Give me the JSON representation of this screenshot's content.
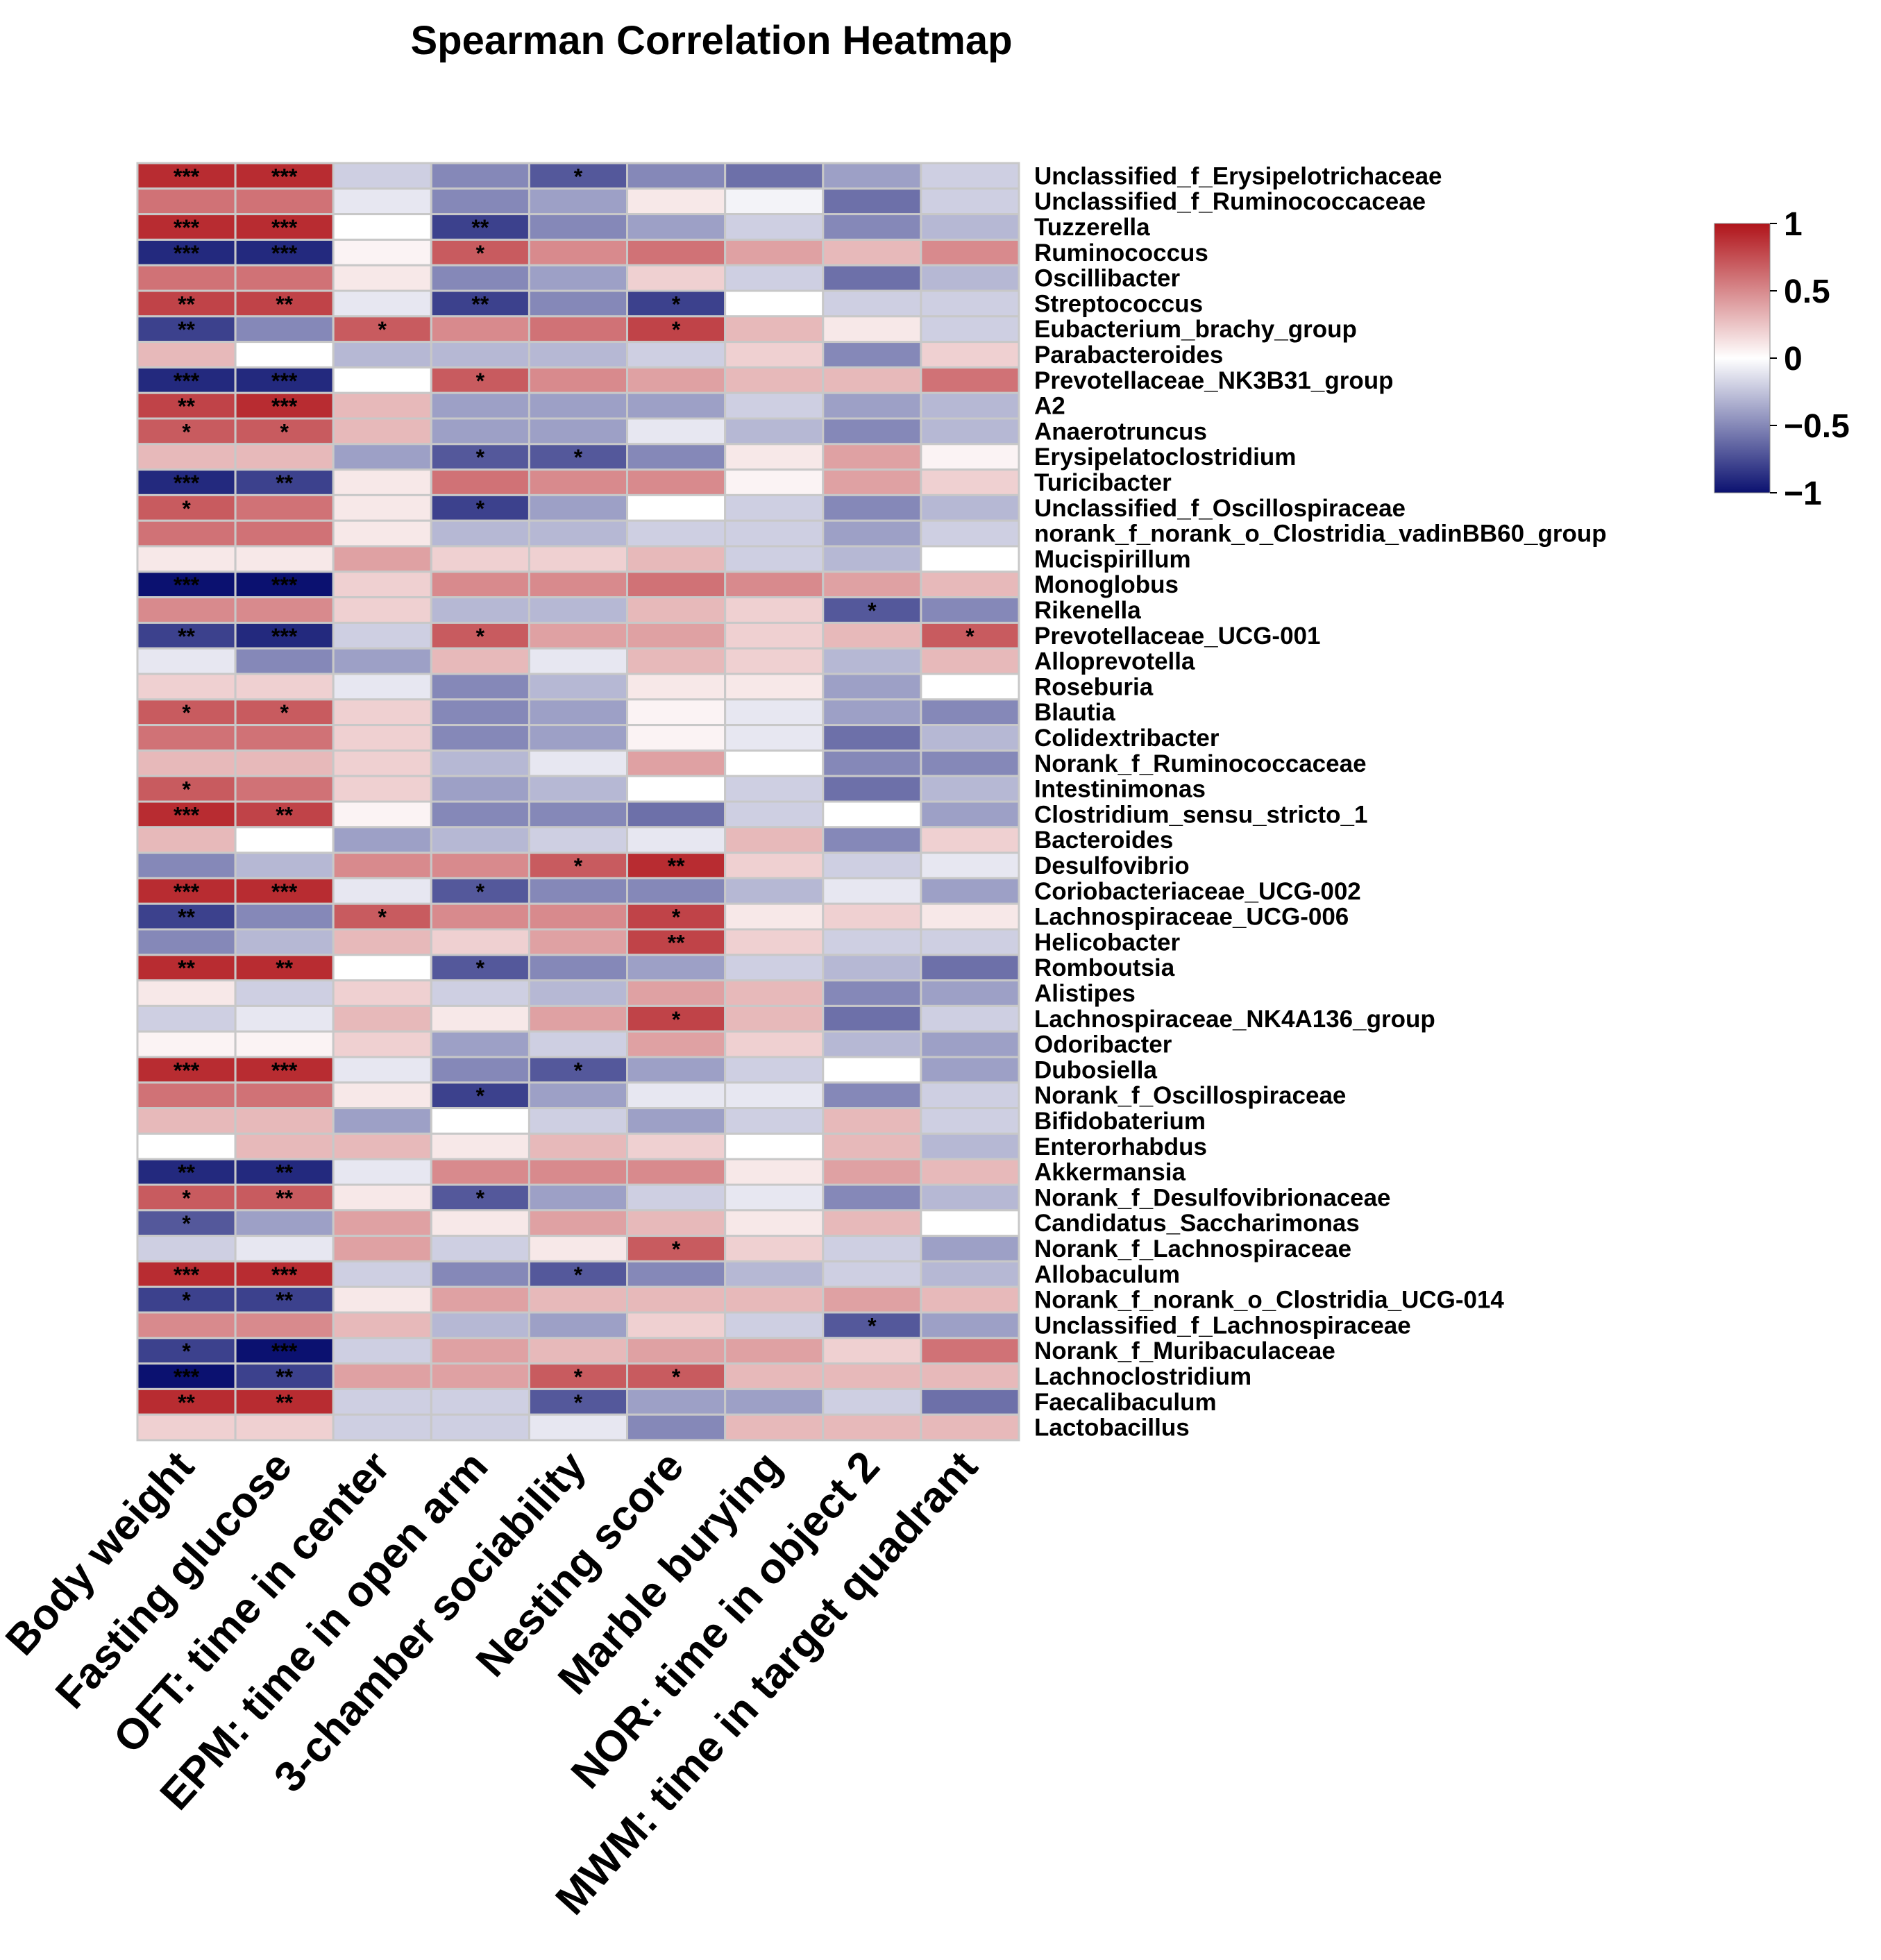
{
  "chart_data": {
    "type": "heatmap",
    "title": "Spearman Correlation Heatmap",
    "columns": [
      "Body weight",
      "Fasting glucose",
      "OFT: time in center",
      "EPM: time in open arm",
      "3-chamber sociability",
      "Nesting score",
      "Marble burying",
      "NOR: time in object 2",
      "MWM: time in target quadrant"
    ],
    "rows": [
      {
        "name": "Unclassified_f_Erysipelotrichaceae",
        "values": [
          0.9,
          0.9,
          -0.2,
          -0.5,
          -0.7,
          -0.5,
          -0.6,
          -0.4,
          -0.2
        ],
        "sig": [
          "***",
          "***",
          "",
          "",
          "*",
          "",
          "",
          "",
          ""
        ]
      },
      {
        "name": "Unclassified_f_Ruminococcaceae",
        "values": [
          0.6,
          0.6,
          -0.1,
          -0.5,
          -0.4,
          0.1,
          -0.05,
          -0.6,
          -0.2
        ],
        "sig": [
          "",
          "",
          "",
          "",
          "",
          "",
          "",
          "",
          ""
        ]
      },
      {
        "name": "Tuzzerella",
        "values": [
          0.9,
          0.9,
          0.0,
          -0.8,
          -0.5,
          -0.4,
          -0.2,
          -0.5,
          -0.3
        ],
        "sig": [
          "***",
          "***",
          "",
          "**",
          "",
          "",
          "",
          "",
          ""
        ]
      },
      {
        "name": "Ruminococcus",
        "values": [
          -0.9,
          -0.9,
          0.05,
          0.7,
          0.5,
          0.6,
          0.4,
          0.3,
          0.5
        ],
        "sig": [
          "***",
          "***",
          "",
          "*",
          "",
          "",
          "",
          "",
          ""
        ]
      },
      {
        "name": "Oscillibacter",
        "values": [
          0.6,
          0.6,
          0.1,
          -0.5,
          -0.4,
          0.2,
          -0.2,
          -0.6,
          -0.3
        ],
        "sig": [
          "",
          "",
          "",
          "",
          "",
          "",
          "",
          "",
          ""
        ]
      },
      {
        "name": "Streptococcus",
        "values": [
          0.8,
          0.8,
          -0.1,
          -0.8,
          -0.5,
          -0.8,
          0.0,
          -0.2,
          -0.2
        ],
        "sig": [
          "**",
          "**",
          "",
          "**",
          "",
          "*",
          "",
          "",
          ""
        ]
      },
      {
        "name": "Eubacterium_brachy_group",
        "values": [
          -0.8,
          -0.5,
          0.7,
          0.5,
          0.6,
          0.8,
          0.3,
          0.1,
          -0.2
        ],
        "sig": [
          "**",
          "",
          "*",
          "",
          "",
          "*",
          "",
          "",
          ""
        ]
      },
      {
        "name": "Parabacteroides",
        "values": [
          0.3,
          0.0,
          -0.3,
          -0.3,
          -0.3,
          -0.2,
          0.2,
          -0.5,
          0.2
        ],
        "sig": [
          "",
          "",
          "",
          "",
          "",
          "",
          "",
          "",
          ""
        ]
      },
      {
        "name": "Prevotellaceae_NK3B31_group",
        "values": [
          -0.9,
          -0.9,
          0.0,
          0.7,
          0.5,
          0.4,
          0.3,
          0.3,
          0.6
        ],
        "sig": [
          "***",
          "***",
          "",
          "*",
          "",
          "",
          "",
          "",
          ""
        ]
      },
      {
        "name": "A2",
        "values": [
          0.8,
          0.9,
          0.3,
          -0.4,
          -0.4,
          -0.4,
          -0.2,
          -0.4,
          -0.3
        ],
        "sig": [
          "**",
          "***",
          "",
          "",
          "",
          "",
          "",
          "",
          ""
        ]
      },
      {
        "name": "Anaerotruncus",
        "values": [
          0.7,
          0.7,
          0.3,
          -0.4,
          -0.4,
          -0.1,
          -0.3,
          -0.5,
          -0.3
        ],
        "sig": [
          "*",
          "*",
          "",
          "",
          "",
          "",
          "",
          "",
          ""
        ]
      },
      {
        "name": "Erysipelatoclostridium",
        "values": [
          0.3,
          0.3,
          -0.4,
          -0.7,
          -0.7,
          -0.5,
          0.1,
          0.4,
          0.05
        ],
        "sig": [
          "",
          "",
          "",
          "*",
          "*",
          "",
          "",
          "",
          ""
        ]
      },
      {
        "name": "Turicibacter",
        "values": [
          -0.9,
          -0.8,
          0.1,
          0.6,
          0.5,
          0.5,
          0.05,
          0.4,
          0.2
        ],
        "sig": [
          "***",
          "**",
          "",
          "",
          "",
          "",
          "",
          "",
          ""
        ]
      },
      {
        "name": "Unclassified_f_Oscillospiraceae",
        "values": [
          0.7,
          0.6,
          0.1,
          -0.8,
          -0.4,
          0.0,
          -0.2,
          -0.5,
          -0.3
        ],
        "sig": [
          "*",
          "",
          "",
          "*",
          "",
          "",
          "",
          "",
          ""
        ]
      },
      {
        "name": "norank_f_norank_o_Clostridia_vadinBB60_group",
        "values": [
          0.6,
          0.6,
          0.1,
          -0.3,
          -0.3,
          -0.2,
          -0.2,
          -0.4,
          -0.2
        ],
        "sig": [
          "",
          "",
          "",
          "",
          "",
          "",
          "",
          "",
          ""
        ]
      },
      {
        "name": "Mucispirillum",
        "values": [
          0.1,
          0.1,
          0.4,
          0.2,
          0.2,
          0.3,
          -0.2,
          -0.3,
          0.0
        ],
        "sig": [
          "",
          "",
          "",
          "",
          "",
          "",
          "",
          "",
          ""
        ]
      },
      {
        "name": "Monoglobus",
        "values": [
          -1.0,
          -1.0,
          0.2,
          0.5,
          0.5,
          0.6,
          0.5,
          0.4,
          0.3
        ],
        "sig": [
          "***",
          "***",
          "",
          "",
          "",
          "",
          "",
          "",
          ""
        ]
      },
      {
        "name": "Rikenella",
        "values": [
          0.5,
          0.5,
          0.2,
          -0.3,
          -0.3,
          0.3,
          0.2,
          -0.7,
          -0.5
        ],
        "sig": [
          "",
          "",
          "",
          "",
          "",
          "",
          "",
          "*",
          ""
        ]
      },
      {
        "name": "Prevotellaceae_UCG-001",
        "values": [
          -0.8,
          -0.9,
          -0.2,
          0.7,
          0.4,
          0.4,
          0.2,
          0.3,
          0.7
        ],
        "sig": [
          "**",
          "***",
          "",
          "*",
          "",
          "",
          "",
          "",
          "*"
        ]
      },
      {
        "name": "Alloprevotella",
        "values": [
          -0.1,
          -0.5,
          -0.4,
          0.3,
          -0.1,
          0.3,
          0.2,
          -0.3,
          0.3
        ],
        "sig": [
          "",
          "",
          "",
          "",
          "",
          "",
          "",
          "",
          ""
        ]
      },
      {
        "name": "Roseburia",
        "values": [
          0.2,
          0.2,
          -0.1,
          -0.5,
          -0.3,
          0.1,
          0.1,
          -0.4,
          0.0
        ],
        "sig": [
          "",
          "",
          "",
          "",
          "",
          "",
          "",
          "",
          ""
        ]
      },
      {
        "name": "Blautia",
        "values": [
          0.7,
          0.7,
          0.2,
          -0.5,
          -0.4,
          0.05,
          -0.1,
          -0.4,
          -0.5
        ],
        "sig": [
          "*",
          "*",
          "",
          "",
          "",
          "",
          "",
          "",
          ""
        ]
      },
      {
        "name": "Colidextribacter",
        "values": [
          0.6,
          0.6,
          0.2,
          -0.5,
          -0.4,
          0.05,
          -0.1,
          -0.6,
          -0.3
        ],
        "sig": [
          "",
          "",
          "",
          "",
          "",
          "",
          "",
          "",
          ""
        ]
      },
      {
        "name": "Norank_f_Ruminococcaceae",
        "values": [
          0.3,
          0.3,
          0.2,
          -0.3,
          -0.1,
          0.4,
          0.0,
          -0.5,
          -0.5
        ],
        "sig": [
          "",
          "",
          "",
          "",
          "",
          "",
          "",
          "",
          ""
        ]
      },
      {
        "name": "Intestinimonas",
        "values": [
          0.7,
          0.6,
          0.2,
          -0.4,
          -0.3,
          0.0,
          -0.2,
          -0.6,
          -0.3
        ],
        "sig": [
          "*",
          "",
          "",
          "",
          "",
          "",
          "",
          "",
          ""
        ]
      },
      {
        "name": "Clostridium_sensu_stricto_1",
        "values": [
          0.9,
          0.8,
          0.05,
          -0.5,
          -0.5,
          -0.6,
          -0.2,
          0.0,
          -0.4
        ],
        "sig": [
          "***",
          "**",
          "",
          "",
          "",
          "",
          "",
          "",
          ""
        ]
      },
      {
        "name": "Bacteroides",
        "values": [
          0.3,
          0.0,
          -0.4,
          -0.3,
          -0.2,
          -0.1,
          0.3,
          -0.5,
          0.2
        ],
        "sig": [
          "",
          "",
          "",
          "",
          "",
          "",
          "",
          "",
          ""
        ]
      },
      {
        "name": "Desulfovibrio",
        "values": [
          -0.5,
          -0.3,
          0.5,
          0.5,
          0.7,
          0.9,
          0.2,
          -0.2,
          -0.1
        ],
        "sig": [
          "",
          "",
          "",
          "",
          "*",
          "**",
          "",
          "",
          ""
        ]
      },
      {
        "name": "Coriobacteriaceae_UCG-002",
        "values": [
          0.9,
          0.9,
          -0.1,
          -0.7,
          -0.5,
          -0.5,
          -0.3,
          -0.1,
          -0.4
        ],
        "sig": [
          "***",
          "***",
          "",
          "*",
          "",
          "",
          "",
          "",
          ""
        ]
      },
      {
        "name": "Lachnospiraceae_UCG-006",
        "values": [
          -0.8,
          -0.5,
          0.7,
          0.5,
          0.5,
          0.8,
          0.1,
          0.2,
          0.1
        ],
        "sig": [
          "**",
          "",
          "*",
          "",
          "",
          "*",
          "",
          "",
          ""
        ]
      },
      {
        "name": "Helicobacter",
        "values": [
          -0.5,
          -0.3,
          0.3,
          0.2,
          0.4,
          0.8,
          0.2,
          -0.2,
          -0.2
        ],
        "sig": [
          "",
          "",
          "",
          "",
          "",
          "**",
          "",
          "",
          ""
        ]
      },
      {
        "name": "Romboutsia",
        "values": [
          0.9,
          0.9,
          0.0,
          -0.7,
          -0.5,
          -0.4,
          -0.2,
          -0.3,
          -0.6
        ],
        "sig": [
          "**",
          "**",
          "",
          "*",
          "",
          "",
          "",
          "",
          ""
        ]
      },
      {
        "name": "Alistipes",
        "values": [
          0.1,
          -0.2,
          0.2,
          -0.2,
          -0.3,
          0.4,
          0.3,
          -0.5,
          -0.4
        ],
        "sig": [
          "",
          "",
          "",
          "",
          "",
          "",
          "",
          "",
          ""
        ]
      },
      {
        "name": "Lachnospiraceae_NK4A136_group",
        "values": [
          -0.2,
          -0.1,
          0.3,
          0.1,
          0.4,
          0.8,
          0.3,
          -0.6,
          -0.2
        ],
        "sig": [
          "",
          "",
          "",
          "",
          "",
          "*",
          "",
          "",
          ""
        ]
      },
      {
        "name": "Odoribacter",
        "values": [
          0.05,
          0.05,
          0.2,
          -0.4,
          -0.2,
          0.4,
          0.2,
          -0.3,
          -0.4
        ],
        "sig": [
          "",
          "",
          "",
          "",
          "",
          "",
          "",
          "",
          ""
        ]
      },
      {
        "name": "Dubosiella",
        "values": [
          0.9,
          0.9,
          -0.1,
          -0.5,
          -0.7,
          -0.4,
          -0.2,
          0.0,
          -0.4
        ],
        "sig": [
          "***",
          "***",
          "",
          "",
          "*",
          "",
          "",
          "",
          ""
        ]
      },
      {
        "name": "Norank_f_Oscillospiraceae",
        "values": [
          0.6,
          0.6,
          0.1,
          -0.8,
          -0.4,
          -0.1,
          -0.1,
          -0.5,
          -0.2
        ],
        "sig": [
          "",
          "",
          "",
          "*",
          "",
          "",
          "",
          "",
          ""
        ]
      },
      {
        "name": "Bifidobaterium",
        "values": [
          0.3,
          0.3,
          -0.4,
          0.0,
          -0.2,
          -0.4,
          -0.2,
          0.3,
          -0.2
        ],
        "sig": [
          "",
          "",
          "",
          "",
          "",
          "",
          "",
          "",
          ""
        ]
      },
      {
        "name": "Enterorhabdus",
        "values": [
          0.0,
          0.3,
          0.3,
          0.1,
          0.3,
          0.2,
          0.0,
          0.3,
          -0.3
        ],
        "sig": [
          "",
          "",
          "",
          "",
          "",
          "",
          "",
          "",
          ""
        ]
      },
      {
        "name": "Akkermansia",
        "values": [
          -0.9,
          -0.9,
          -0.1,
          0.5,
          0.5,
          0.5,
          0.1,
          0.4,
          0.3
        ],
        "sig": [
          "**",
          "**",
          "",
          "",
          "",
          "",
          "",
          "",
          ""
        ]
      },
      {
        "name": "Norank_f_Desulfovibrionaceae",
        "values": [
          0.7,
          0.7,
          0.1,
          -0.7,
          -0.4,
          -0.2,
          -0.1,
          -0.5,
          -0.3
        ],
        "sig": [
          "*",
          "**",
          "",
          "*",
          "",
          "",
          "",
          "",
          ""
        ]
      },
      {
        "name": "Candidatus_Saccharimonas",
        "values": [
          -0.7,
          -0.4,
          0.4,
          0.1,
          0.4,
          0.3,
          0.1,
          0.3,
          0.0
        ],
        "sig": [
          "*",
          "",
          "",
          "",
          "",
          "",
          "",
          "",
          ""
        ]
      },
      {
        "name": "Norank_f_Lachnospiraceae",
        "values": [
          -0.2,
          -0.1,
          0.4,
          -0.2,
          0.1,
          0.7,
          0.2,
          -0.2,
          -0.4
        ],
        "sig": [
          "",
          "",
          "",
          "",
          "",
          "*",
          "",
          "",
          ""
        ]
      },
      {
        "name": "Allobaculum",
        "values": [
          0.9,
          0.9,
          -0.2,
          -0.5,
          -0.7,
          -0.5,
          -0.3,
          -0.2,
          -0.3
        ],
        "sig": [
          "***",
          "***",
          "",
          "",
          "*",
          "",
          "",
          "",
          ""
        ]
      },
      {
        "name": "Norank_f_norank_o_Clostridia_UCG-014",
        "values": [
          -0.8,
          -0.8,
          0.1,
          0.4,
          0.3,
          0.3,
          0.3,
          0.4,
          0.3
        ],
        "sig": [
          "*",
          "**",
          "",
          "",
          "",
          "",
          "",
          "",
          ""
        ]
      },
      {
        "name": "Unclassified_f_Lachnospiraceae",
        "values": [
          0.5,
          0.5,
          0.3,
          -0.3,
          -0.4,
          0.2,
          -0.2,
          -0.7,
          -0.4
        ],
        "sig": [
          "",
          "",
          "",
          "",
          "",
          "",
          "",
          "*",
          ""
        ]
      },
      {
        "name": "Norank_f_Muribaculaceae",
        "values": [
          -0.8,
          -1.0,
          -0.2,
          0.4,
          0.3,
          0.4,
          0.4,
          0.2,
          0.6
        ],
        "sig": [
          "*",
          "***",
          "",
          "",
          "",
          "",
          "",
          "",
          ""
        ]
      },
      {
        "name": "Lachnoclostridium",
        "values": [
          -1.0,
          -0.8,
          0.4,
          0.4,
          0.7,
          0.7,
          0.3,
          0.3,
          0.3
        ],
        "sig": [
          "***",
          "**",
          "",
          "",
          "*",
          "*",
          "",
          "",
          ""
        ]
      },
      {
        "name": "Faecalibaculum",
        "values": [
          0.9,
          0.9,
          -0.2,
          -0.2,
          -0.7,
          -0.4,
          -0.4,
          -0.2,
          -0.6
        ],
        "sig": [
          "**",
          "**",
          "",
          "",
          "*",
          "",
          "",
          "",
          ""
        ]
      },
      {
        "name": "Lactobacillus",
        "values": [
          0.2,
          0.2,
          -0.2,
          -0.2,
          -0.1,
          -0.5,
          0.3,
          0.3,
          0.3
        ],
        "sig": [
          "",
          "",
          "",
          "",
          "",
          "",
          "",
          "",
          ""
        ]
      }
    ],
    "color_scale": {
      "min": -1,
      "mid": 0,
      "max": 1,
      "low_color": "#0b1170",
      "mid_color": "#ffffff",
      "high_color": "#b0141a"
    },
    "legend": {
      "ticks": [
        1,
        0.5,
        0,
        -0.5,
        -1
      ],
      "tick_labels": [
        "1",
        "0.5",
        "0",
        "−0.5",
        "−1"
      ]
    }
  }
}
